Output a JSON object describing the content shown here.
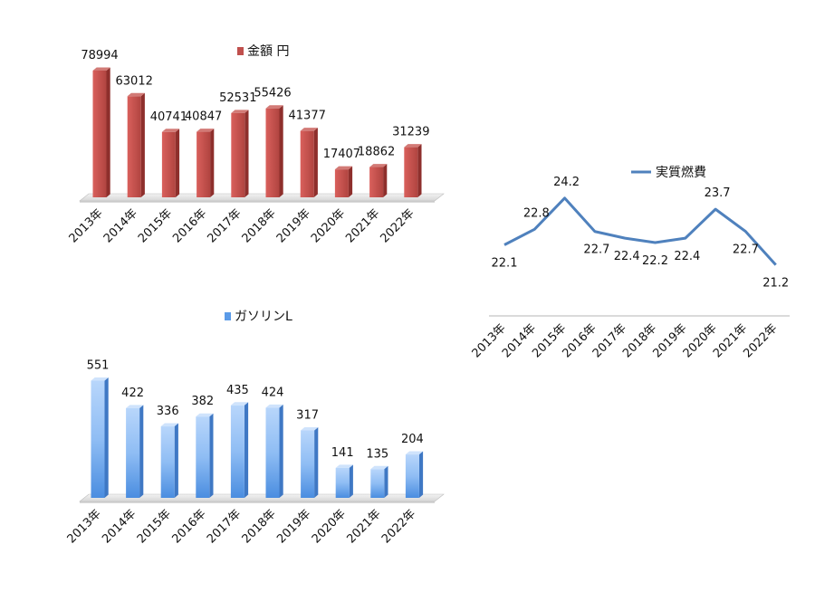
{
  "chart_data": [
    {
      "type": "bar",
      "categories": [
        "2013年",
        "2014年",
        "2015年",
        "2016年",
        "2017年",
        "2018年",
        "2019年",
        "2020年",
        "2021年",
        "2022年"
      ],
      "series": [
        {
          "name": "金額 円",
          "values": [
            78994,
            63012,
            40741,
            40847,
            52531,
            55426,
            41377,
            17407,
            18862,
            31239
          ]
        }
      ],
      "data_labels": [
        "78994",
        "63012",
        "40741",
        "40847",
        "52531",
        "55426",
        "41377",
        "17407",
        "18862",
        "31239"
      ],
      "legend": "top",
      "color": "#c0504d",
      "ylim": [
        0,
        88000
      ]
    },
    {
      "type": "line",
      "categories": [
        "2013年",
        "2014年",
        "2015年",
        "2016年",
        "2017年",
        "2018年",
        "2019年",
        "2020年",
        "2021年",
        "2022年"
      ],
      "series": [
        {
          "name": "実質燃費",
          "values": [
            22.1,
            22.8,
            24.2,
            22.7,
            22.4,
            22.2,
            22.4,
            23.7,
            22.7,
            21.2
          ]
        }
      ],
      "data_labels": [
        "22.1",
        "22.8",
        "24.2",
        "22.7",
        "22.4",
        "22.2",
        "22.4",
        "23.7",
        "22.7",
        "21.2"
      ],
      "legend": "top",
      "color": "#4f81bd",
      "ylim": [
        20.9,
        24.6
      ]
    },
    {
      "type": "bar",
      "categories": [
        "2013年",
        "2014年",
        "2015年",
        "2016年",
        "2017年",
        "2018年",
        "2019年",
        "2020年",
        "2021年",
        "2022年"
      ],
      "series": [
        {
          "name": "ガソリンL",
          "values": [
            551,
            422,
            336,
            382,
            435,
            424,
            317,
            141,
            135,
            204
          ]
        }
      ],
      "data_labels": [
        "551",
        "422",
        "336",
        "382",
        "435",
        "424",
        "317",
        "141",
        "135",
        "204"
      ],
      "legend": "top",
      "color": "#6fa8f0",
      "ylim": [
        0,
        600
      ]
    }
  ]
}
